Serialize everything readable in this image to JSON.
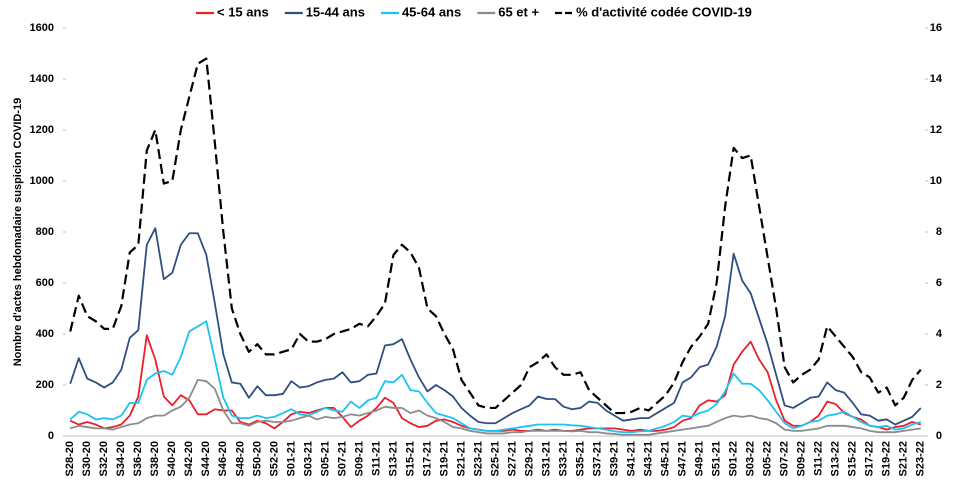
{
  "chart_data": {
    "type": "line",
    "y_label": "Nombre d'actes hebdomadaire suspicion COVID-19",
    "categories": [
      "S28-20",
      null,
      "S30-20",
      null,
      "S32-20",
      null,
      "S34-20",
      null,
      "S36-20",
      null,
      "S38-20",
      null,
      "S40-20",
      null,
      "S42-20",
      null,
      "S44-20",
      null,
      "S46-20",
      null,
      "S48-20",
      null,
      "S50-20",
      null,
      "S52-20",
      null,
      "S01-21",
      null,
      "S03-21",
      null,
      "S05-21",
      null,
      "S07-21",
      null,
      "S09-21",
      null,
      "S11-21",
      null,
      "S13-21",
      null,
      "S15-21",
      null,
      "S17-21",
      null,
      "S19-21",
      null,
      "S21-21",
      null,
      "S23-21",
      null,
      "S25-21",
      null,
      "S27-21",
      null,
      "S29-21",
      null,
      "S31-21",
      null,
      "S33-21",
      null,
      "S35-21",
      null,
      "S37-21",
      null,
      "S39-21",
      null,
      "S41-21",
      null,
      "S43-21",
      null,
      "S45-21",
      null,
      "S47-21",
      null,
      "S49-21",
      null,
      "S51-21",
      null,
      "S01-22",
      null,
      "S03-22",
      null,
      "S05-22",
      null,
      "S07-22",
      null,
      "S09-22",
      null,
      "S11-22",
      null,
      "S13-22",
      null,
      "S15-22",
      null,
      "S17-22",
      null,
      "S19-22",
      null,
      "S21-22",
      null,
      "S23-22"
    ],
    "series": [
      {
        "name": "< 15 ans",
        "color": "#e8202a",
        "values": [
          60,
          45,
          55,
          45,
          30,
          35,
          45,
          80,
          155,
          395,
          300,
          155,
          120,
          160,
          140,
          85,
          85,
          105,
          100,
          100,
          55,
          45,
          60,
          50,
          30,
          55,
          85,
          95,
          90,
          100,
          110,
          110,
          75,
          35,
          60,
          80,
          110,
          150,
          130,
          70,
          50,
          35,
          40,
          60,
          65,
          55,
          40,
          30,
          25,
          20,
          20,
          20,
          25,
          20,
          20,
          25,
          20,
          25,
          20,
          20,
          25,
          30,
          30,
          30,
          30,
          25,
          20,
          25,
          20,
          20,
          25,
          35,
          60,
          70,
          120,
          140,
          135,
          160,
          280,
          330,
          370,
          300,
          250,
          140,
          60,
          40,
          40,
          55,
          80,
          135,
          125,
          90,
          75,
          65,
          40,
          35,
          25,
          35,
          40,
          55,
          45
        ]
      },
      {
        "name": "15-44 ans",
        "color": "#2f4f7f",
        "values": [
          205,
          305,
          225,
          210,
          190,
          210,
          260,
          385,
          415,
          750,
          815,
          615,
          640,
          750,
          795,
          795,
          710,
          520,
          320,
          210,
          205,
          150,
          195,
          160,
          160,
          165,
          215,
          190,
          195,
          210,
          220,
          225,
          250,
          210,
          215,
          240,
          245,
          355,
          360,
          380,
          300,
          230,
          175,
          200,
          180,
          155,
          110,
          80,
          55,
          50,
          50,
          70,
          90,
          105,
          120,
          155,
          145,
          145,
          115,
          105,
          110,
          135,
          130,
          100,
          80,
          60,
          65,
          70,
          70,
          90,
          110,
          130,
          210,
          230,
          270,
          280,
          350,
          470,
          715,
          610,
          560,
          460,
          360,
          240,
          120,
          110,
          130,
          150,
          155,
          210,
          180,
          170,
          130,
          85,
          80,
          60,
          65,
          45,
          60,
          75,
          110
        ]
      },
      {
        "name": "45-64 ans",
        "color": "#1cc3f2",
        "values": [
          65,
          95,
          85,
          65,
          70,
          65,
          80,
          130,
          130,
          220,
          245,
          255,
          240,
          310,
          410,
          430,
          450,
          300,
          150,
          80,
          70,
          70,
          80,
          70,
          75,
          90,
          105,
          85,
          80,
          95,
          110,
          100,
          95,
          135,
          110,
          140,
          150,
          215,
          210,
          240,
          180,
          175,
          130,
          90,
          80,
          70,
          50,
          30,
          25,
          20,
          20,
          25,
          30,
          35,
          40,
          45,
          45,
          45,
          45,
          42,
          40,
          35,
          30,
          25,
          18,
          15,
          15,
          18,
          20,
          30,
          40,
          55,
          80,
          75,
          90,
          100,
          125,
          175,
          245,
          205,
          205,
          180,
          140,
          95,
          50,
          30,
          40,
          55,
          60,
          80,
          85,
          95,
          75,
          55,
          40,
          35,
          40,
          25,
          30,
          45,
          55
        ]
      },
      {
        "name": "65 et +",
        "color": "#8c8c8c",
        "values": [
          30,
          40,
          35,
          30,
          30,
          25,
          35,
          45,
          50,
          70,
          80,
          80,
          100,
          115,
          150,
          220,
          215,
          185,
          100,
          50,
          50,
          40,
          55,
          60,
          55,
          55,
          60,
          70,
          80,
          65,
          75,
          70,
          75,
          85,
          80,
          90,
          100,
          115,
          110,
          110,
          90,
          100,
          80,
          70,
          55,
          35,
          30,
          20,
          15,
          10,
          10,
          10,
          15,
          15,
          20,
          20,
          20,
          20,
          20,
          18,
          20,
          15,
          15,
          10,
          8,
          5,
          5,
          5,
          5,
          10,
          15,
          20,
          25,
          30,
          35,
          40,
          55,
          70,
          80,
          75,
          80,
          70,
          65,
          50,
          25,
          20,
          20,
          25,
          30,
          40,
          40,
          40,
          35,
          30,
          20,
          15,
          15,
          15,
          20,
          25,
          30
        ]
      },
      {
        "name": "% d'activité codée COVID-19",
        "color": "#000000",
        "dash": true,
        "axis": "y2",
        "values": [
          4.1,
          5.5,
          4.7,
          4.5,
          4.2,
          4.2,
          5.1,
          7.2,
          7.5,
          11.2,
          12,
          9.9,
          10,
          12,
          13.3,
          14.6,
          14.8,
          11.5,
          8,
          5,
          4,
          3.3,
          3.6,
          3.2,
          3.2,
          3.3,
          3.4,
          4,
          3.7,
          3.7,
          3.8,
          4,
          4.1,
          4.2,
          4.4,
          4.3,
          4.7,
          5.2,
          7.1,
          7.5,
          7.2,
          6.6,
          5,
          4.7,
          4,
          3.4,
          2.2,
          1.7,
          1.2,
          1.1,
          1.1,
          1.4,
          1.7,
          2,
          2.7,
          2.9,
          3.2,
          2.7,
          2.4,
          2.4,
          2.5,
          1.8,
          1.5,
          1.2,
          0.9,
          0.9,
          0.95,
          1.1,
          1,
          1.3,
          1.6,
          2.1,
          2.9,
          3.5,
          3.9,
          4.4,
          6,
          9,
          11.3,
          10.9,
          11,
          9,
          7,
          5,
          2.7,
          2.1,
          2.4,
          2.6,
          3,
          4.3,
          3.9,
          3.5,
          3.1,
          2.5,
          2.3,
          1.7,
          1.9,
          1.2,
          1.5,
          2.2,
          2.6
        ]
      }
    ],
    "ylim": [
      0,
      1600
    ],
    "yticks": [
      0,
      200,
      400,
      600,
      800,
      1000,
      1200,
      1400,
      1600
    ],
    "y2lim": [
      0,
      16
    ],
    "y2ticks": [
      0,
      2,
      4,
      6,
      8,
      10,
      12,
      14,
      16
    ],
    "legend": "top"
  }
}
